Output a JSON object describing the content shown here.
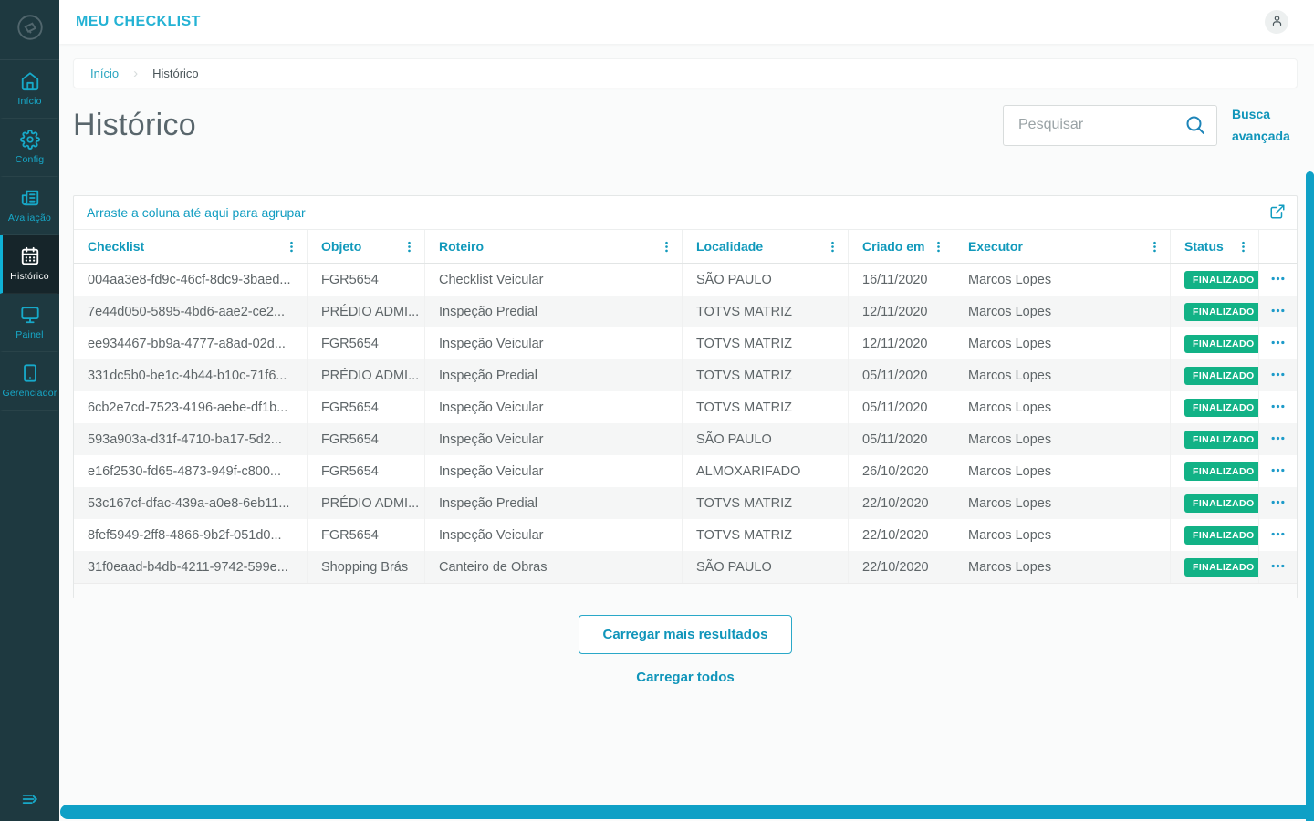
{
  "colors": {
    "accent": "#129dc1",
    "accent_bright": "#24b2d4",
    "badge_green": "#12b286",
    "scrollbar": "#0fa0c6",
    "sidebar_bg": "#1e3940"
  },
  "app": {
    "title": "MEU CHECKLIST"
  },
  "sidebar": {
    "logo_icon": "logo-icon",
    "expand_icon": "expand-icon",
    "items": [
      {
        "label": "Início",
        "icon": "home-icon",
        "active": false
      },
      {
        "label": "Config",
        "icon": "gear-icon",
        "active": false
      },
      {
        "label": "Avaliação",
        "icon": "review-icon",
        "active": false
      },
      {
        "label": "Histórico",
        "icon": "calendar-icon",
        "active": true
      },
      {
        "label": "Painel",
        "icon": "monitor-icon",
        "active": false
      },
      {
        "label": "Gerenciador",
        "icon": "tablet-icon",
        "active": false
      }
    ]
  },
  "breadcrumb": {
    "items": [
      "Início",
      "Histórico"
    ]
  },
  "page": {
    "title": "Histórico"
  },
  "search": {
    "placeholder": "Pesquisar",
    "advanced_link": "Busca avançada",
    "icon": "search-icon"
  },
  "table": {
    "group_hint": "Arraste a coluna até aqui para agrupar",
    "export_icon": "export-icon",
    "columns": [
      {
        "label": "Checklist"
      },
      {
        "label": "Objeto"
      },
      {
        "label": "Roteiro"
      },
      {
        "label": "Localidade"
      },
      {
        "label": "Criado em"
      },
      {
        "label": "Executor"
      },
      {
        "label": "Status"
      }
    ],
    "rows": [
      {
        "checklist": "004aa3e8-fd9c-46cf-8dc9-3baed...",
        "objeto": "FGR5654",
        "roteiro": "Checklist Veicular",
        "localidade": "SÃO PAULO",
        "criado_em": "16/11/2020",
        "executor": "Marcos Lopes",
        "status": "FINALIZADO"
      },
      {
        "checklist": "7e44d050-5895-4bd6-aae2-ce2...",
        "objeto": "PRÉDIO ADMI...",
        "roteiro": "Inspeção Predial",
        "localidade": "TOTVS MATRIZ",
        "criado_em": "12/11/2020",
        "executor": "Marcos Lopes",
        "status": "FINALIZADO"
      },
      {
        "checklist": "ee934467-bb9a-4777-a8ad-02d...",
        "objeto": "FGR5654",
        "roteiro": "Inspeção Veicular",
        "localidade": "TOTVS MATRIZ",
        "criado_em": "12/11/2020",
        "executor": "Marcos Lopes",
        "status": "FINALIZADO"
      },
      {
        "checklist": "331dc5b0-be1c-4b44-b10c-71f6...",
        "objeto": "PRÉDIO ADMI...",
        "roteiro": "Inspeção Predial",
        "localidade": "TOTVS MATRIZ",
        "criado_em": "05/11/2020",
        "executor": "Marcos Lopes",
        "status": "FINALIZADO"
      },
      {
        "checklist": "6cb2e7cd-7523-4196-aebe-df1b...",
        "objeto": "FGR5654",
        "roteiro": "Inspeção Veicular",
        "localidade": "TOTVS MATRIZ",
        "criado_em": "05/11/2020",
        "executor": "Marcos Lopes",
        "status": "FINALIZADO"
      },
      {
        "checklist": "593a903a-d31f-4710-ba17-5d2...",
        "objeto": "FGR5654",
        "roteiro": "Inspeção Veicular",
        "localidade": "SÃO PAULO",
        "criado_em": "05/11/2020",
        "executor": "Marcos Lopes",
        "status": "FINALIZADO"
      },
      {
        "checklist": "e16f2530-fd65-4873-949f-c800...",
        "objeto": "FGR5654",
        "roteiro": "Inspeção Veicular",
        "localidade": "ALMOXARIFADO",
        "criado_em": "26/10/2020",
        "executor": "Marcos Lopes",
        "status": "FINALIZADO"
      },
      {
        "checklist": "53c167cf-dfac-439a-a0e8-6eb11...",
        "objeto": "PRÉDIO ADMI...",
        "roteiro": "Inspeção Predial",
        "localidade": "TOTVS MATRIZ",
        "criado_em": "22/10/2020",
        "executor": "Marcos Lopes",
        "status": "FINALIZADO"
      },
      {
        "checklist": "8fef5949-2ff8-4866-9b2f-051d0...",
        "objeto": "FGR5654",
        "roteiro": "Inspeção Veicular",
        "localidade": "TOTVS MATRIZ",
        "criado_em": "22/10/2020",
        "executor": "Marcos Lopes",
        "status": "FINALIZADO"
      },
      {
        "checklist": "31f0eaad-b4db-4211-9742-599e...",
        "objeto": "Shopping Brás",
        "roteiro": "Canteiro de Obras",
        "localidade": "SÃO PAULO",
        "criado_em": "22/10/2020",
        "executor": "Marcos Lopes",
        "status": "FINALIZADO"
      }
    ]
  },
  "actions": {
    "load_more": "Carregar mais resultados",
    "load_all": "Carregar todos"
  }
}
